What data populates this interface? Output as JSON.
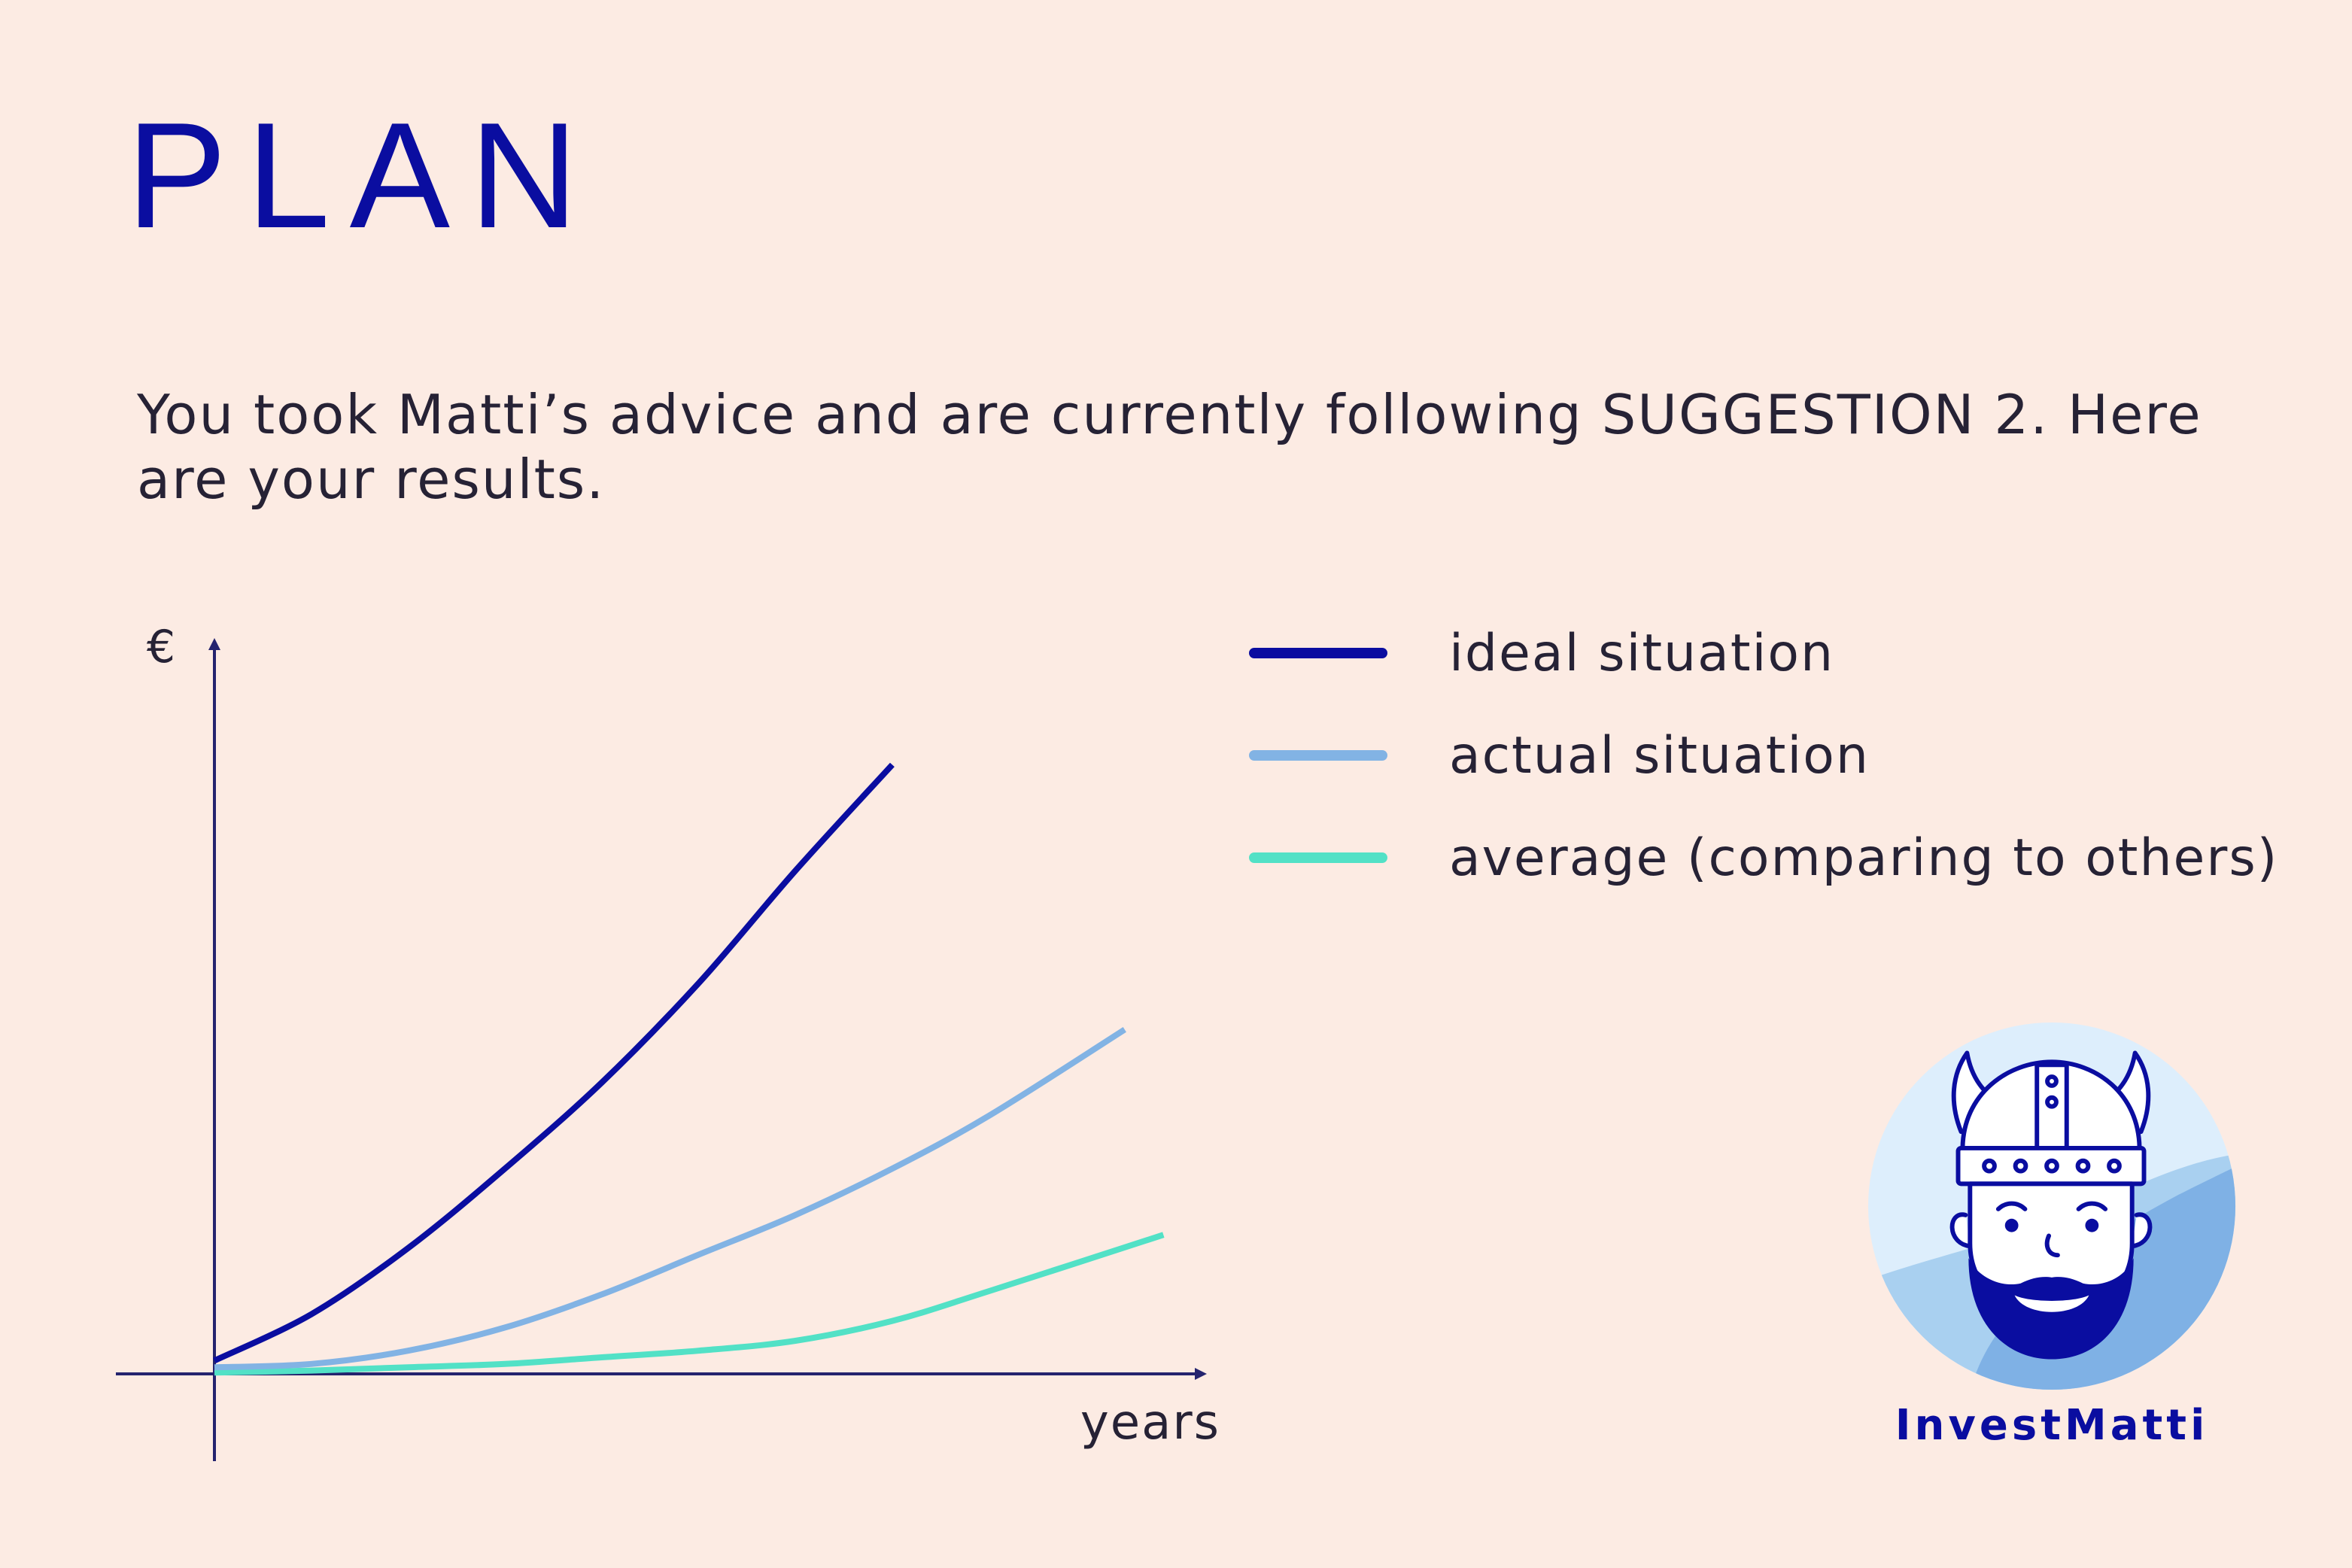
{
  "header": {
    "title": "PLAN",
    "intro_text": "You took Matti’s advice and are currently following SUGGESTION 2. Here are your results."
  },
  "chart_data": {
    "type": "line",
    "title": "",
    "xlabel": "years",
    "ylabel": "€",
    "xlim": [
      0,
      10
    ],
    "ylim": [
      0,
      10
    ],
    "grid": false,
    "axis_ticks": false,
    "legend_position": "top-right",
    "series": [
      {
        "name": "ideal situation",
        "color": "#0A0DA0",
        "x": [
          0,
          1,
          2,
          3,
          4,
          5,
          6,
          7
        ],
        "y": [
          0.2,
          0.9,
          1.9,
          3.1,
          4.4,
          5.9,
          7.6,
          9.2
        ]
      },
      {
        "name": "actual situation",
        "color": "#82B3E4",
        "x": [
          0,
          1,
          2,
          3,
          4,
          5,
          6,
          7,
          8,
          9.4
        ],
        "y": [
          0.1,
          0.15,
          0.35,
          0.7,
          1.2,
          1.8,
          2.4,
          3.1,
          3.9,
          5.2
        ]
      },
      {
        "name": "average (comparing to others)",
        "color": "#52E1C6",
        "x": [
          0,
          1,
          2,
          3,
          4,
          5,
          6,
          7,
          8,
          9.8
        ],
        "y": [
          0.02,
          0.05,
          0.1,
          0.15,
          0.25,
          0.35,
          0.5,
          0.8,
          1.25,
          2.1
        ]
      }
    ]
  },
  "brand": {
    "name": "InvestMatti",
    "logo_icon": "viking-mascot-icon",
    "colors": {
      "primary": "#0A0DA0",
      "background": "#FCEBE3",
      "circle_light": "#DDEEFC",
      "circle_mid": "#A9D0F0",
      "circle_dark": "#7FB1E5"
    }
  }
}
